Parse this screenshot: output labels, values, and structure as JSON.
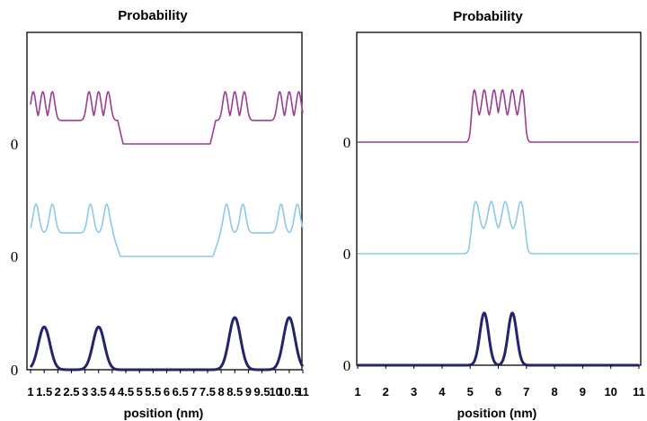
{
  "colors": {
    "top": "#9b3d92",
    "middle": "#8ec8ea",
    "bottom": "#24236e"
  },
  "chart_data": [
    {
      "type": "line",
      "title": "Probability",
      "xlabel": "position (nm)",
      "xlim": [
        1,
        11
      ],
      "x_ticks": [
        "1",
        "1.5",
        "2",
        "2.5",
        "3",
        "3.5",
        "4",
        "4.5",
        "5",
        "5.5",
        "6",
        "6.5",
        "7",
        "7.5",
        "8",
        "8.5",
        "9",
        "9.5",
        "10",
        "10.5",
        "11"
      ],
      "y_baseline_labels": [
        "0",
        "0",
        "0"
      ],
      "series": [
        {
          "key": "top",
          "color": "#9b3d92",
          "baseline": 2,
          "envelope": [
            [
              1.0,
              1
            ],
            [
              4.2,
              1
            ],
            [
              4.4,
              0
            ],
            [
              7.6,
              0
            ],
            [
              7.8,
              1
            ],
            [
              11.0,
              1
            ]
          ],
          "peaks": [
            1.1,
            1.45,
            1.8,
            3.15,
            3.5,
            3.85,
            8.15,
            8.5,
            8.85,
            10.15,
            10.5,
            10.85
          ],
          "peak_height": 1.0,
          "peak_width": 0.13
        },
        {
          "key": "middle",
          "color": "#8ec8ea",
          "baseline": 1,
          "envelope": [
            [
              1.0,
              1
            ],
            [
              4.0,
              1
            ],
            [
              4.3,
              0
            ],
            [
              7.7,
              0
            ],
            [
              8.0,
              1
            ],
            [
              11.0,
              1
            ]
          ],
          "peaks": [
            1.2,
            1.8,
            3.2,
            3.8,
            8.2,
            8.8,
            10.2,
            10.8
          ],
          "peak_height": 1.0,
          "peak_width": 0.15
        },
        {
          "key": "bottom",
          "color": "#24236e",
          "baseline": 0,
          "envelope": [],
          "peaks": [
            1.5,
            3.5,
            8.5,
            10.5
          ],
          "peak_heights": [
            0.82,
            0.82,
            1.0,
            1.0
          ],
          "peak_width": 0.3
        }
      ]
    },
    {
      "type": "line",
      "title": "Probability",
      "xlabel": "position (nm)",
      "xlim": [
        1,
        11
      ],
      "x_ticks": [
        "1",
        "2",
        "3",
        "4",
        "5",
        "6",
        "7",
        "8",
        "9",
        "10",
        "11"
      ],
      "y_baseline_labels": [
        "0",
        "0",
        "0"
      ],
      "series": [
        {
          "key": "top",
          "color": "#9b3d92",
          "baseline": 2,
          "envelope": [
            [
              1.0,
              0
            ],
            [
              5.0,
              0
            ],
            [
              5.2,
              1
            ],
            [
              6.8,
              1
            ],
            [
              7.0,
              0
            ],
            [
              11.0,
              0
            ]
          ],
          "peaks": [
            5.15,
            5.5,
            5.85,
            6.15,
            6.5,
            6.85
          ],
          "peak_height": 1.0,
          "peak_width": 0.12
        },
        {
          "key": "middle",
          "color": "#8ec8ea",
          "baseline": 1,
          "envelope": [
            [
              1.0,
              0
            ],
            [
              4.95,
              0
            ],
            [
              5.2,
              1
            ],
            [
              6.8,
              1
            ],
            [
              7.05,
              0
            ],
            [
              11.0,
              0
            ]
          ],
          "peaks": [
            5.2,
            5.75,
            6.25,
            6.8
          ],
          "peak_height": 1.0,
          "peak_width": 0.16
        },
        {
          "key": "bottom",
          "color": "#24236e",
          "baseline": 0,
          "envelope": [],
          "peaks": [
            5.5,
            6.5
          ],
          "peak_heights": [
            1.0,
            1.0
          ],
          "peak_width": 0.22
        }
      ]
    }
  ]
}
